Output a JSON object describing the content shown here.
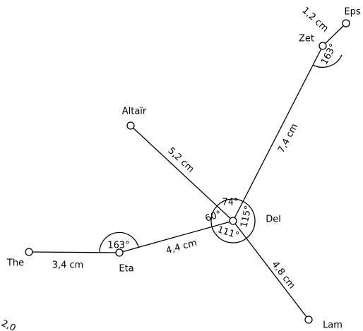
{
  "nodes": [
    {
      "label": "Eps"
    },
    {
      "label": "Zet"
    },
    {
      "label": "Altaïr"
    },
    {
      "label": "Del"
    },
    {
      "label": "The"
    },
    {
      "label": "Eta"
    },
    {
      "label": "Lam"
    }
  ],
  "edges": [
    {
      "label": "1,2 cm"
    },
    {
      "label": "7,4 cm"
    },
    {
      "label": "5,2 cm"
    },
    {
      "label": "4,4 cm"
    },
    {
      "label": "3,4 cm"
    },
    {
      "label": "4,8 cm"
    },
    {
      "label": "2,0"
    }
  ],
  "angles": [
    {
      "label": "163°"
    },
    {
      "label": "74°"
    },
    {
      "label": "60°"
    },
    {
      "label": "115°"
    },
    {
      "label": "111°"
    },
    {
      "label": "163°"
    }
  ]
}
